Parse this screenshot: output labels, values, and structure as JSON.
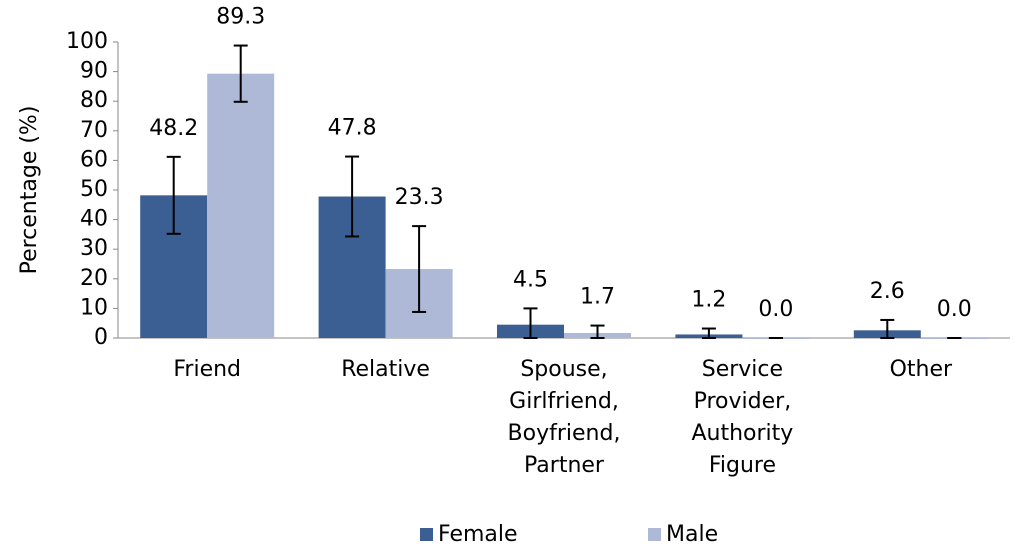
{
  "chart_data": {
    "type": "bar",
    "y_label": "Percentage (%)",
    "categories": [
      "Friend",
      "Relative",
      "Spouse, Girlfriend, Boyfriend, Partner",
      "Service Provider, Authority Figure",
      "Other"
    ],
    "series": [
      {
        "name": "Female",
        "color": "#3c5f93",
        "values": [
          48.2,
          47.8,
          4.5,
          1.2,
          2.6
        ],
        "value_labels": [
          "48.2",
          "47.8",
          "4.5",
          "1.2",
          "2.6"
        ],
        "errors": [
          13,
          13.5,
          5.5,
          2,
          3.5
        ]
      },
      {
        "name": "Male",
        "color": "#adb9d6",
        "values": [
          89.3,
          23.3,
          1.7,
          0,
          0
        ],
        "value_labels": [
          "89.3",
          "23.3",
          "1.7",
          "0.0",
          "0.0"
        ],
        "errors": [
          9.5,
          14.5,
          2.5,
          0,
          0
        ]
      }
    ],
    "ylim": [
      0,
      100
    ],
    "yticks": [
      0,
      10,
      20,
      30,
      40,
      50,
      60,
      70,
      80,
      90,
      100
    ],
    "legend": "bottom"
  }
}
